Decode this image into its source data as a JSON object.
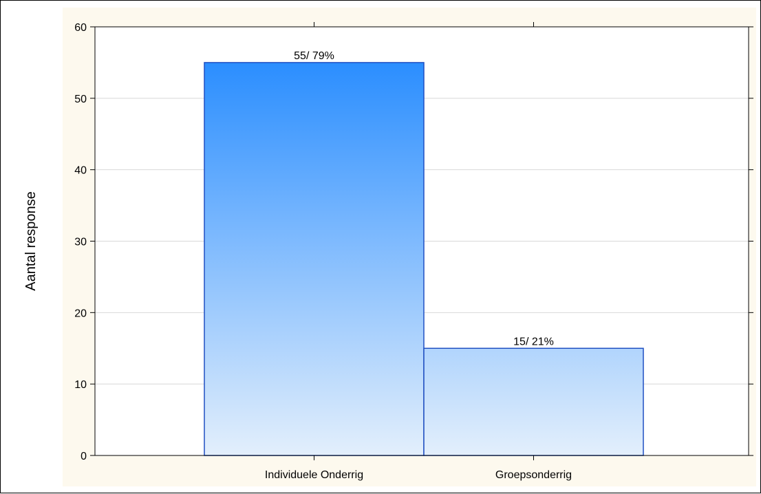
{
  "chart_data": {
    "type": "bar",
    "title": "",
    "xlabel": "",
    "ylabel": "Aantal response",
    "categories": [
      "Individuele Onderrig",
      "Groepsonderrig"
    ],
    "values": [
      55,
      15
    ],
    "data_labels": [
      "55/ 79%",
      "15/ 21%"
    ],
    "ylim": [
      0,
      60
    ],
    "yticks": [
      0,
      10,
      20,
      30,
      40,
      50,
      60
    ],
    "grid": "horizontal",
    "legend": "none"
  },
  "colors": {
    "figure_background": "#fdf9ee",
    "plot_background": "#ffffff",
    "bar_gradient_top": "#1a85ff",
    "bar_gradient_bottom": "#e3effc",
    "bar_outline": "#1f4fc2",
    "grid": "#d8d8d8"
  }
}
